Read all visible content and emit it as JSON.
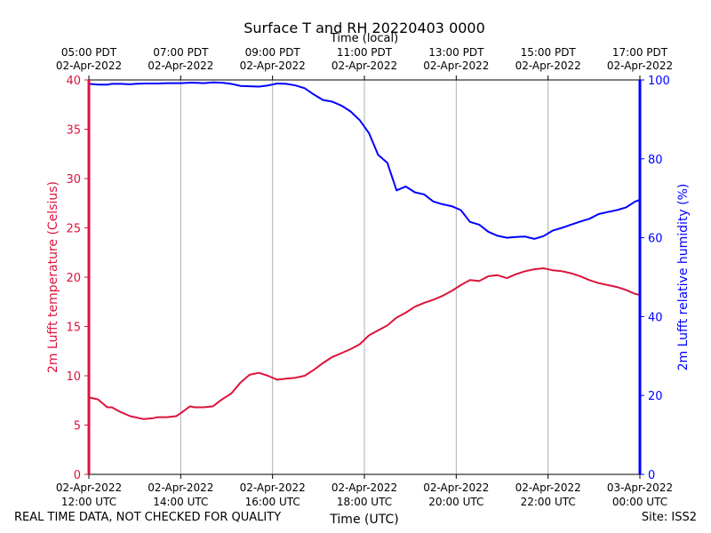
{
  "chart_data": {
    "type": "line",
    "title": "Surface T and RH 20220403 0000",
    "top_axis_title": "Time (local)",
    "xlabel": "Time (UTC)",
    "ylabel_left": "2m Lufft temperature (Celsius)",
    "ylabel_right": "2m Lufft relative humidity (%)",
    "x_unit": "hours UTC",
    "xlim": [
      12,
      24
    ],
    "ylim_left": [
      0,
      40
    ],
    "ylim_right": [
      0,
      100
    ],
    "left_ticks": [
      0,
      5,
      10,
      15,
      20,
      25,
      30,
      35,
      40
    ],
    "right_ticks": [
      0,
      20,
      40,
      60,
      80,
      100
    ],
    "bottom_ticks": [
      {
        "x": 12,
        "date": "02-Apr-2022",
        "time": "12:00 UTC"
      },
      {
        "x": 14,
        "date": "02-Apr-2022",
        "time": "14:00 UTC"
      },
      {
        "x": 16,
        "date": "02-Apr-2022",
        "time": "16:00 UTC"
      },
      {
        "x": 18,
        "date": "02-Apr-2022",
        "time": "18:00 UTC"
      },
      {
        "x": 20,
        "date": "02-Apr-2022",
        "time": "20:00 UTC"
      },
      {
        "x": 22,
        "date": "02-Apr-2022",
        "time": "22:00 UTC"
      },
      {
        "x": 24,
        "date": "03-Apr-2022",
        "time": "00:00 UTC"
      }
    ],
    "top_ticks": [
      {
        "x": 12,
        "time": "05:00 PDT",
        "date": "02-Apr-2022"
      },
      {
        "x": 14,
        "time": "07:00 PDT",
        "date": "02-Apr-2022"
      },
      {
        "x": 16,
        "time": "09:00 PDT",
        "date": "02-Apr-2022"
      },
      {
        "x": 18,
        "time": "11:00 PDT",
        "date": "02-Apr-2022"
      },
      {
        "x": 20,
        "time": "13:00 PDT",
        "date": "02-Apr-2022"
      },
      {
        "x": 22,
        "time": "15:00 PDT",
        "date": "02-Apr-2022"
      },
      {
        "x": 24,
        "time": "17:00 PDT",
        "date": "02-Apr-2022"
      }
    ],
    "grid": "vertical",
    "series": [
      {
        "name": "2m Lufft temperature",
        "axis": "left",
        "color": "#dc143c",
        "x": [
          12.0,
          12.2,
          12.4,
          12.5,
          12.7,
          12.9,
          13.0,
          13.2,
          13.4,
          13.5,
          13.7,
          13.9,
          14.0,
          14.2,
          14.3,
          14.5,
          14.7,
          14.9,
          15.1,
          15.3,
          15.5,
          15.7,
          15.9,
          16.1,
          16.3,
          16.5,
          16.7,
          16.9,
          17.1,
          17.3,
          17.5,
          17.7,
          17.9,
          18.1,
          18.3,
          18.5,
          18.7,
          18.9,
          19.1,
          19.3,
          19.5,
          19.7,
          19.9,
          20.1,
          20.3,
          20.5,
          20.7,
          20.9,
          21.1,
          21.3,
          21.5,
          21.7,
          21.9,
          22.1,
          22.3,
          22.5,
          22.7,
          22.9,
          23.1,
          23.3,
          23.5,
          23.7,
          23.9,
          24.0
        ],
        "values": [
          7.8,
          7.6,
          6.8,
          6.8,
          6.3,
          5.9,
          5.8,
          5.6,
          5.7,
          5.8,
          5.8,
          5.9,
          6.2,
          6.9,
          6.8,
          6.8,
          6.9,
          7.6,
          8.2,
          9.3,
          10.1,
          10.3,
          10.0,
          9.6,
          9.7,
          9.8,
          10.0,
          10.6,
          11.3,
          11.9,
          12.3,
          12.7,
          13.2,
          14.1,
          14.6,
          15.1,
          15.9,
          16.4,
          17.0,
          17.4,
          17.7,
          18.1,
          18.6,
          19.2,
          19.7,
          19.6,
          20.1,
          20.2,
          19.9,
          20.3,
          20.6,
          20.8,
          20.9,
          20.7,
          20.6,
          20.4,
          20.1,
          19.7,
          19.4,
          19.2,
          19.0,
          18.7,
          18.3,
          18.2
        ]
      },
      {
        "name": "2m Lufft relative humidity",
        "axis": "right",
        "color": "#0000ff",
        "x": [
          12.0,
          12.2,
          12.4,
          12.5,
          12.7,
          12.9,
          13.0,
          13.2,
          13.4,
          13.5,
          13.7,
          13.9,
          14.0,
          14.2,
          14.3,
          14.5,
          14.7,
          14.9,
          15.1,
          15.3,
          15.5,
          15.7,
          15.9,
          16.1,
          16.3,
          16.5,
          16.7,
          16.9,
          17.1,
          17.3,
          17.5,
          17.7,
          17.9,
          18.1,
          18.3,
          18.5,
          18.7,
          18.9,
          19.1,
          19.3,
          19.5,
          19.7,
          19.9,
          20.1,
          20.3,
          20.5,
          20.7,
          20.9,
          21.1,
          21.3,
          21.5,
          21.7,
          21.9,
          22.1,
          22.3,
          22.5,
          22.7,
          22.9,
          23.1,
          23.3,
          23.5,
          23.7,
          23.9,
          24.0
        ],
        "values": [
          99.0,
          98.8,
          98.8,
          99.0,
          99.0,
          98.9,
          99.0,
          99.1,
          99.1,
          99.1,
          99.2,
          99.2,
          99.2,
          99.3,
          99.3,
          99.2,
          99.4,
          99.3,
          99.0,
          98.5,
          98.4,
          98.3,
          98.6,
          99.1,
          99.0,
          98.6,
          97.9,
          96.3,
          94.9,
          94.5,
          93.5,
          92.0,
          89.8,
          86.5,
          81.0,
          79.0,
          72.0,
          73.0,
          71.5,
          71.0,
          69.2,
          68.5,
          68.0,
          67.0,
          64.0,
          63.3,
          61.5,
          60.5,
          60.0,
          60.2,
          60.3,
          59.7,
          60.4,
          61.8,
          62.5,
          63.3,
          64.1,
          64.8,
          66.0,
          66.5,
          67.0,
          67.7,
          69.2,
          69.6
        ]
      }
    ]
  },
  "footer": {
    "left": "REAL TIME DATA, NOT CHECKED FOR QUALITY",
    "right": "Site: ISS2"
  }
}
